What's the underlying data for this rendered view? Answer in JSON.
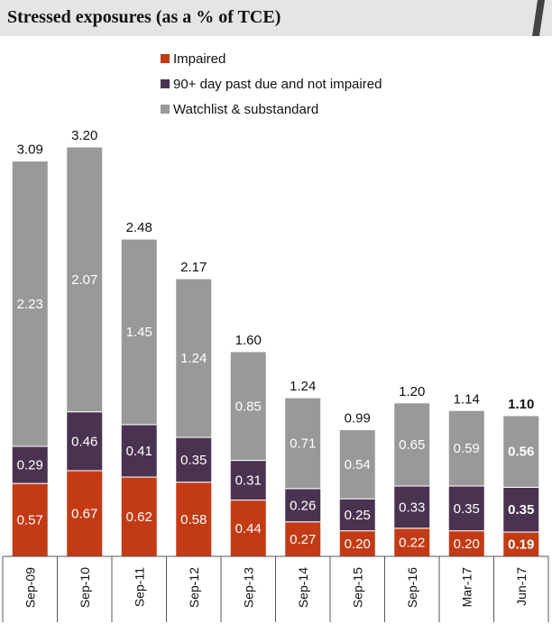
{
  "header": {
    "title": "Stressed exposures (as a % of TCE)"
  },
  "chart_data": {
    "type": "bar",
    "stacked": true,
    "title": "Stressed exposures (as a % of TCE)",
    "xlabel": "",
    "ylabel": "",
    "ylim": [
      0,
      3.2
    ],
    "grid": false,
    "legend_position": "top-center",
    "categories": [
      "Sep-09",
      "Sep-10",
      "Sep-11",
      "Sep-12",
      "Sep-13",
      "Sep-14",
      "Sep-15",
      "Sep-16",
      "Mar-17",
      "Jun-17"
    ],
    "series": [
      {
        "name": "Impaired",
        "color": "#c23b15",
        "values": [
          "0.57",
          "0.67",
          "0.62",
          "0.58",
          "0.44",
          "0.27",
          "0.20",
          "0.22",
          "0.20",
          "0.19"
        ]
      },
      {
        "name": "90+ day past due and not impaired",
        "color": "#4a3350",
        "values": [
          "0.29",
          "0.46",
          "0.41",
          "0.35",
          "0.31",
          "0.26",
          "0.25",
          "0.33",
          "0.35",
          "0.35"
        ]
      },
      {
        "name": "Watchlist & substandard",
        "color": "#999999",
        "values": [
          "2.23",
          "2.07",
          "1.45",
          "1.24",
          "0.85",
          "0.71",
          "0.54",
          "0.65",
          "0.59",
          "0.56"
        ]
      }
    ],
    "totals": [
      "3.09",
      "3.20",
      "2.48",
      "2.17",
      "1.60",
      "1.24",
      "0.99",
      "1.20",
      "1.14",
      "1.10"
    ],
    "highlight_category": "Jun-17"
  }
}
